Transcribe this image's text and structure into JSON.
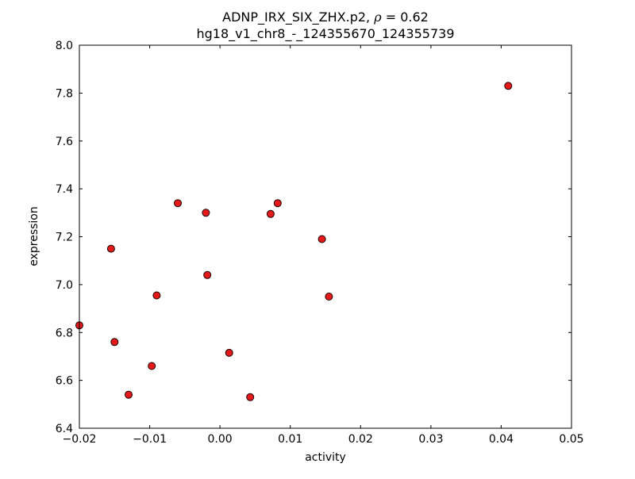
{
  "chart_data": {
    "type": "scatter",
    "title": "ADNP_IRX_SIX_ZHX.p2, ρ = 0.62",
    "subtitle": "hg18_v1_chr8_-_124355670_124355739",
    "title_parts": {
      "prefix": "ADNP_IRX_SIX_ZHX.p2, ",
      "rho": "ρ",
      "suffix": " = 0.62"
    },
    "xlabel": "activity",
    "ylabel": "expression",
    "xlim": [
      -0.02,
      0.05
    ],
    "ylim": [
      6.4,
      8.0
    ],
    "xticks": [
      -0.02,
      -0.01,
      0,
      0.01,
      0.02,
      0.03,
      0.04,
      0.05
    ],
    "xtick_labels": [
      "−0.02",
      "−0.01",
      "0.00",
      "0.01",
      "0.02",
      "0.03",
      "0.04",
      "0.05"
    ],
    "yticks": [
      6.4,
      6.6,
      6.8,
      7.0,
      7.2,
      7.4,
      7.6,
      7.8,
      8.0
    ],
    "ytick_labels": [
      "6.4",
      "6.6",
      "6.8",
      "7.0",
      "7.2",
      "7.4",
      "7.6",
      "7.8",
      "8.0"
    ],
    "grid": false,
    "marker": {
      "shape": "circle",
      "color": "#e41a1a",
      "edge_color": "#1a0000",
      "radius": 4.5
    },
    "points": [
      [
        -0.02,
        6.83
      ],
      [
        -0.0155,
        7.15
      ],
      [
        -0.015,
        6.76
      ],
      [
        -0.013,
        6.54
      ],
      [
        -0.0097,
        6.66
      ],
      [
        -0.009,
        6.955
      ],
      [
        -0.006,
        7.34
      ],
      [
        -0.002,
        7.3
      ],
      [
        -0.0018,
        7.04
      ],
      [
        0.0013,
        6.715
      ],
      [
        0.0043,
        6.53
      ],
      [
        0.0072,
        7.295
      ],
      [
        0.0082,
        7.34
      ],
      [
        0.0145,
        7.19
      ],
      [
        0.0155,
        6.95
      ],
      [
        0.041,
        7.83
      ]
    ]
  }
}
